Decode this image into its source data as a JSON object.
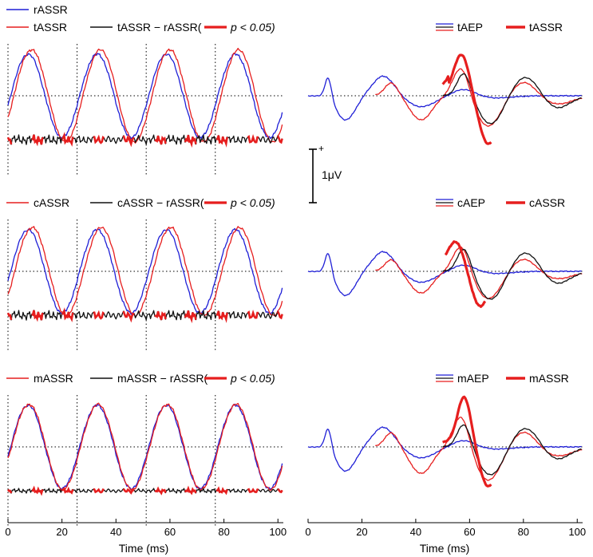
{
  "colors": {
    "blue": "#1f1fd6",
    "red": "#e61e1e",
    "black": "#111111"
  },
  "chart_data": [
    {
      "id": "left-top",
      "type": "line",
      "xlabel": "",
      "xlim": [
        0,
        102
      ],
      "legend": [
        {
          "label": "rASSR",
          "style": "blue-line"
        },
        {
          "label": "tASSR",
          "style": "red-line"
        },
        {
          "label": "tASSR − rASSR(",
          "style": "black-line"
        },
        {
          "label": "p < 0.05)",
          "style": "thick-red-line"
        }
      ],
      "series": [
        {
          "name": "rASSR",
          "color": "blue",
          "kind": "periodic",
          "peak": 7.5,
          "amp": 0.95,
          "lag": 0
        },
        {
          "name": "tASSR",
          "color": "red",
          "kind": "periodic",
          "peak": 7.5,
          "amp": 1.05,
          "lag": 1.2
        },
        {
          "name": "tASSR − rASSR",
          "color": "black",
          "kind": "difference",
          "baseline": -1.0,
          "amp": 0.12
        }
      ],
      "period_markers_ms": [
        0,
        25.6,
        51.2,
        76.8
      ]
    },
    {
      "id": "left-middle",
      "type": "line",
      "xlabel": "",
      "xlim": [
        0,
        102
      ],
      "legend": [
        {
          "label": "cASSR",
          "style": "red-line"
        },
        {
          "label": "cASSR − rASSR(",
          "style": "black-line"
        },
        {
          "label": "p < 0.05)",
          "style": "thick-red-line"
        }
      ],
      "series": [
        {
          "name": "rASSR",
          "color": "blue",
          "kind": "periodic",
          "peak": 7.5,
          "amp": 0.95,
          "lag": 0
        },
        {
          "name": "cASSR",
          "color": "red",
          "kind": "periodic",
          "peak": 7.5,
          "amp": 1.0,
          "lag": 1.5
        },
        {
          "name": "cASSR − rASSR",
          "color": "black",
          "kind": "difference",
          "baseline": -1.0,
          "amp": 0.12
        }
      ],
      "period_markers_ms": [
        0,
        25.6,
        51.2,
        76.8
      ]
    },
    {
      "id": "left-bottom",
      "type": "line",
      "xlabel": "Time (ms)",
      "xlim": [
        0,
        102
      ],
      "xticks": [
        0,
        20,
        40,
        60,
        80,
        100
      ],
      "legend": [
        {
          "label": "mASSR",
          "style": "red-line"
        },
        {
          "label": "mASSR − rASSR(",
          "style": "black-line"
        },
        {
          "label": "p < 0.05)",
          "style": "thick-red-line"
        }
      ],
      "series": [
        {
          "name": "rASSR",
          "color": "blue",
          "kind": "periodic",
          "peak": 7.5,
          "amp": 0.95,
          "lag": 0
        },
        {
          "name": "mASSR",
          "color": "red",
          "kind": "periodic",
          "peak": 7.5,
          "amp": 0.97,
          "lag": 0.3
        },
        {
          "name": "mASSR − rASSR",
          "color": "black",
          "kind": "difference",
          "baseline": -1.0,
          "amp": 0.06
        }
      ],
      "period_markers_ms": [
        0,
        25.6,
        51.2,
        76.8
      ]
    },
    {
      "id": "right-top",
      "type": "line",
      "xlabel": "",
      "xlim": [
        0,
        102
      ],
      "legend": [
        {
          "label": "tAEP",
          "style": "stack-line"
        },
        {
          "label": "tASSR",
          "style": "thick-red-line"
        }
      ],
      "series": [
        {
          "name": "rAEP",
          "color": "blue",
          "kind": "aep",
          "variant": "r",
          "x_range": [
            0,
            102
          ]
        },
        {
          "name": "tAEP",
          "color": "red",
          "kind": "aep",
          "variant": "t",
          "x_range": [
            25,
            102
          ]
        },
        {
          "name": "tAEP black",
          "color": "black",
          "kind": "aep",
          "variant": "tb",
          "x_range": [
            50,
            102
          ]
        },
        {
          "name": "tASSR",
          "color": "red",
          "kind": "aep",
          "variant": "thick",
          "x_range": [
            50,
            68
          ],
          "thick": true
        }
      ]
    },
    {
      "id": "right-middle",
      "type": "line",
      "xlabel": "",
      "xlim": [
        0,
        102
      ],
      "legend": [
        {
          "label": "cAEP",
          "style": "stack-line"
        },
        {
          "label": "cASSR",
          "style": "thick-red-line"
        }
      ],
      "series": [
        {
          "name": "rAEP",
          "color": "blue",
          "kind": "aep",
          "variant": "r",
          "x_range": [
            0,
            102
          ]
        },
        {
          "name": "cAEP",
          "color": "red",
          "kind": "aep",
          "variant": "c",
          "x_range": [
            25,
            102
          ]
        },
        {
          "name": "cAEP black",
          "color": "black",
          "kind": "aep",
          "variant": "cb",
          "x_range": [
            50,
            102
          ]
        },
        {
          "name": "cASSR",
          "color": "red",
          "kind": "aep",
          "variant": "cthick",
          "x_range": [
            51,
            66
          ],
          "thick": true
        }
      ]
    },
    {
      "id": "right-bottom",
      "type": "line",
      "xlabel": "Time (ms)",
      "xlim": [
        0,
        102
      ],
      "xticks": [
        0,
        20,
        40,
        60,
        80,
        100
      ],
      "legend": [
        {
          "label": "mAEP",
          "style": "stack-line"
        },
        {
          "label": "mASSR",
          "style": "thick-red-line"
        }
      ],
      "series": [
        {
          "name": "rAEP",
          "color": "blue",
          "kind": "aep",
          "variant": "r",
          "x_range": [
            0,
            102
          ]
        },
        {
          "name": "mAEP",
          "color": "red",
          "kind": "aep",
          "variant": "m",
          "x_range": [
            25,
            102
          ]
        },
        {
          "name": "mAEP black",
          "color": "black",
          "kind": "aep",
          "variant": "mb",
          "x_range": [
            50,
            102
          ]
        },
        {
          "name": "mASSR",
          "color": "red",
          "kind": "aep",
          "variant": "mthick",
          "x_range": [
            50,
            68
          ],
          "thick": true
        }
      ]
    }
  ],
  "scale_bar": {
    "label": "1μV",
    "polarity": "+",
    "microvolts": 1
  }
}
